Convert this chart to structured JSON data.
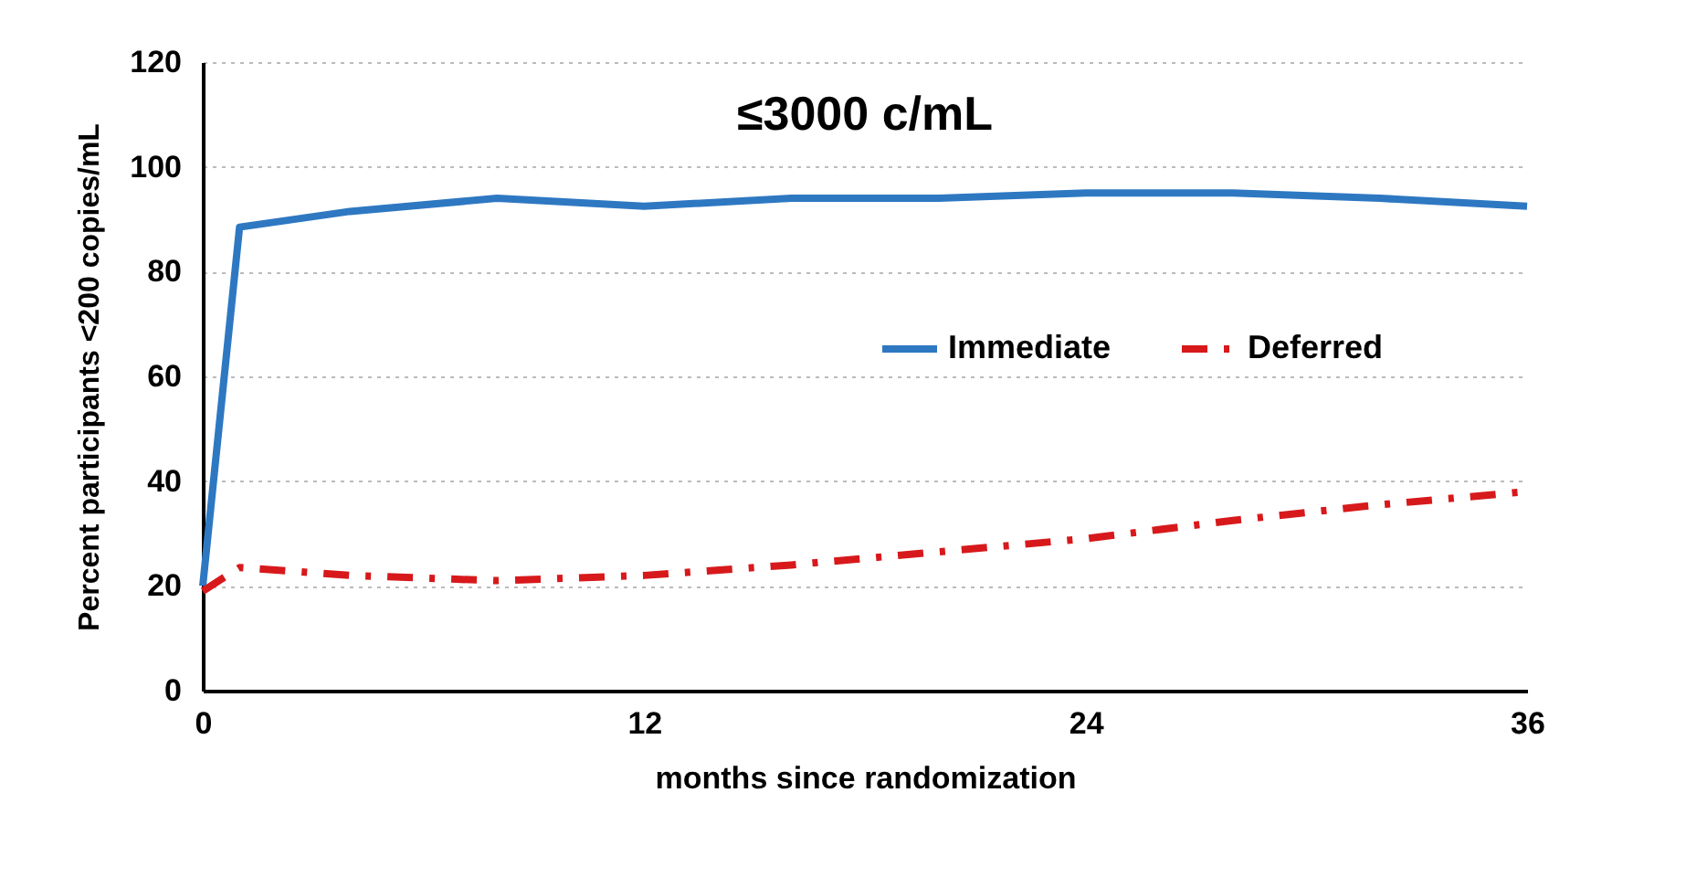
{
  "chart_data": {
    "type": "line",
    "title": "≤3000 c/mL",
    "xlabel": "months since randomization",
    "ylabel": "Percent participants <200 copies/mL",
    "x": [
      0,
      1,
      4,
      8,
      12,
      16,
      20,
      24,
      28,
      32,
      36
    ],
    "series": [
      {
        "name": "Immediate",
        "color": "#2e78c2",
        "line_style": "solid",
        "values": [
          20,
          88.5,
          91.5,
          94,
          92.5,
          94,
          94,
          95,
          95,
          94,
          92.5
        ]
      },
      {
        "name": "Deferred",
        "color": "#d7191c",
        "line_style": "dashed",
        "values": [
          19,
          23.5,
          22,
          21,
          22,
          24,
          26.5,
          29,
          32.5,
          35.5,
          38
        ]
      }
    ],
    "xlim": [
      0,
      36
    ],
    "xticks": [
      0,
      12,
      24,
      36
    ],
    "ylim": [
      0,
      120
    ],
    "yticks": [
      0,
      20,
      40,
      60,
      80,
      100,
      120
    ],
    "grid": "y",
    "legend": "top right"
  }
}
